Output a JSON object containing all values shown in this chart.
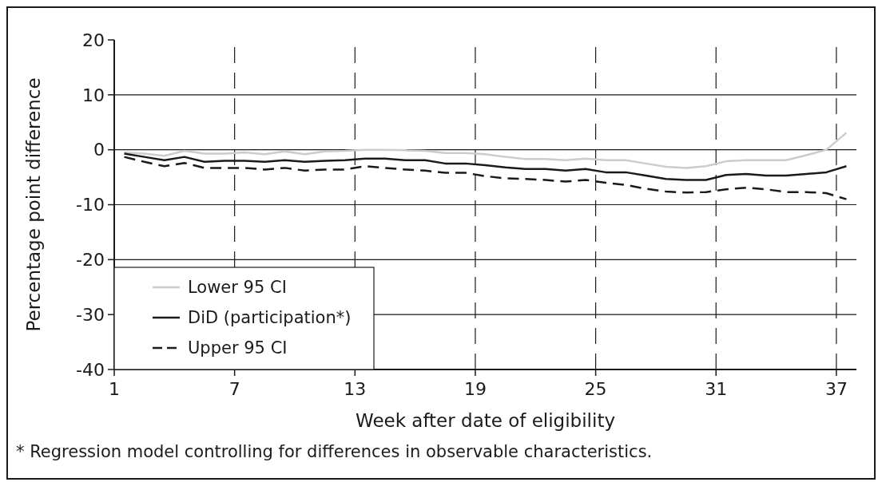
{
  "chart_data": {
    "type": "line",
    "xlabel": "Week after date of eligibility",
    "ylabel": "Percentage point difference",
    "x": [
      1.5,
      2.5,
      3.5,
      4.5,
      5.5,
      6.5,
      7.5,
      8.5,
      9.5,
      10.5,
      11.5,
      12.5,
      13.5,
      14.5,
      15.5,
      16.5,
      17.5,
      18.5,
      19.5,
      20.5,
      21.5,
      22.5,
      23.5,
      24.5,
      25.5,
      26.5,
      27.5,
      28.5,
      29.5,
      30.5,
      31.5,
      32.5,
      33.5,
      34.5,
      35.5,
      36.5,
      37.5
    ],
    "series": [
      {
        "name": "Lower 95 CI",
        "color": "#cccccc",
        "line_style": "solid",
        "values": [
          -0.5,
          -0.7,
          -1.1,
          -0.2,
          -0.7,
          -0.7,
          -0.5,
          -0.8,
          -0.3,
          -0.8,
          -0.3,
          -0.2,
          0,
          0,
          -0.1,
          -0.2,
          -0.6,
          -0.6,
          -0.8,
          -1.3,
          -1.7,
          -1.7,
          -1.9,
          -1.6,
          -1.9,
          -1.9,
          -2.5,
          -3.1,
          -3.3,
          -3.0,
          -2.1,
          -1.9,
          -1.9,
          -1.9,
          -1.0,
          0,
          3.1
        ]
      },
      {
        "name": "DiD (participation*)",
        "color": "#1a1a1a",
        "line_style": "solid",
        "values": [
          -0.7,
          -1.3,
          -1.9,
          -1.3,
          -2.2,
          -2.0,
          -2.0,
          -2.2,
          -1.9,
          -2.2,
          -2.0,
          -1.9,
          -1.6,
          -1.6,
          -1.9,
          -1.9,
          -2.5,
          -2.5,
          -2.8,
          -3.2,
          -3.5,
          -3.5,
          -3.8,
          -3.5,
          -4.1,
          -4.1,
          -4.7,
          -5.3,
          -5.5,
          -5.5,
          -4.6,
          -4.4,
          -4.7,
          -4.7,
          -4.4,
          -4.1,
          -3.0
        ]
      },
      {
        "name": "Upper 95 CI",
        "color": "#1a1a1a",
        "line_style": "dashed",
        "values": [
          -1.3,
          -2.2,
          -3.0,
          -2.4,
          -3.3,
          -3.3,
          -3.3,
          -3.6,
          -3.3,
          -3.8,
          -3.6,
          -3.6,
          -3.0,
          -3.3,
          -3.6,
          -3.8,
          -4.2,
          -4.2,
          -4.8,
          -5.2,
          -5.3,
          -5.5,
          -5.8,
          -5.5,
          -6.0,
          -6.4,
          -7.1,
          -7.6,
          -7.8,
          -7.7,
          -7.2,
          -6.9,
          -7.2,
          -7.7,
          -7.7,
          -7.9,
          -9.0
        ]
      }
    ],
    "xlim": [
      1,
      38
    ],
    "xticks": [
      1,
      7,
      13,
      19,
      25,
      31,
      37
    ],
    "ylim": [
      -40,
      20
    ],
    "yticks": [
      -40,
      -30,
      -20,
      -10,
      0,
      10,
      20
    ],
    "grid": true,
    "legend": "bottom left",
    "annotations": [
      "* Regression model controlling for differences in observable characteristics."
    ]
  }
}
